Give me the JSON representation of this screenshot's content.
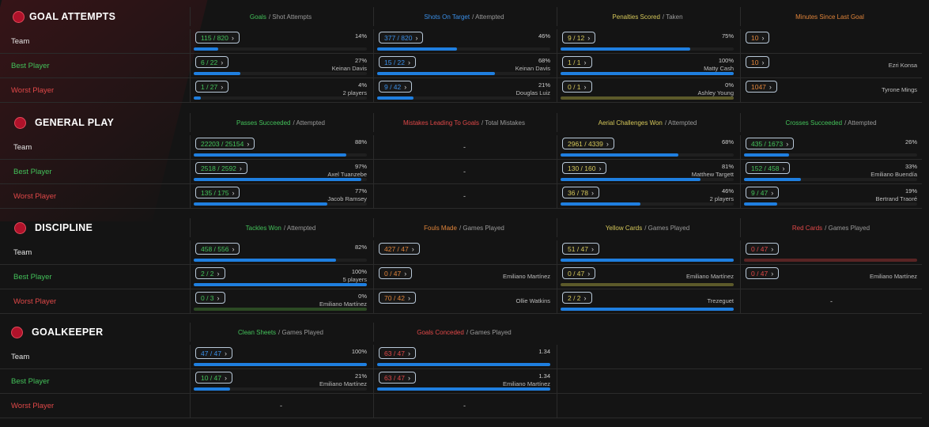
{
  "colors": {
    "green": "#43c25a",
    "blue": "#3a8fe8",
    "yellow": "#d6c85a",
    "orange": "#e0843a",
    "red": "#e04848",
    "bar": "#1f7fe0"
  },
  "row_labels": {
    "team": "Team",
    "best": "Best Player",
    "worst": "Worst Player"
  },
  "sections": [
    {
      "title": "GOAL ATTEMPTS",
      "icon": "goal-icon",
      "columns": [
        {
          "highlight": "Goals",
          "rest": "/ Shot Attempts",
          "color": "#43c25a"
        },
        {
          "highlight": "Shots On Target",
          "rest": "/ Attempted",
          "color": "#3a8fe8"
        },
        {
          "highlight": "Penalties Scored",
          "rest": "/ Taken",
          "color": "#d6c85a"
        },
        {
          "highlight": "Minutes Since Last Goal",
          "rest": "",
          "color": "#e0843a"
        }
      ],
      "rows": [
        {
          "key": "team",
          "cells": [
            {
              "value": "115 / 820",
              "color": "#43c25a",
              "pct": "14%",
              "sub": "",
              "fill": 0.14,
              "track": "dark"
            },
            {
              "value": "377 / 820",
              "color": "#3a8fe8",
              "pct": "46%",
              "sub": "",
              "fill": 0.46,
              "track": "dark"
            },
            {
              "value": "9 / 12",
              "color": "#d6c85a",
              "pct": "75%",
              "sub": "",
              "fill": 0.75,
              "track": "dark"
            },
            {
              "value": "10",
              "color": "#e0843a",
              "pct": "",
              "sub": ""
            }
          ]
        },
        {
          "key": "best",
          "cells": [
            {
              "value": "6 / 22",
              "color": "#43c25a",
              "pct": "27%",
              "sub": "Keinan Davis",
              "fill": 0.27,
              "track": "dark"
            },
            {
              "value": "15 / 22",
              "color": "#3a8fe8",
              "pct": "68%",
              "sub": "Keinan Davis",
              "fill": 0.68,
              "track": "dark"
            },
            {
              "value": "1 / 1",
              "color": "#d6c85a",
              "pct": "100%",
              "sub": "Matty Cash",
              "fill": 1.0,
              "track": "dark"
            },
            {
              "value": "10",
              "color": "#e0843a",
              "pct": "",
              "sub": "Ezri Konsa",
              "midsub": true
            }
          ]
        },
        {
          "key": "worst",
          "cells": [
            {
              "value": "1 / 27",
              "color": "#43c25a",
              "pct": "4%",
              "sub": "2 players",
              "fill": 0.04,
              "track": "dark"
            },
            {
              "value": "9 / 42",
              "color": "#3a8fe8",
              "pct": "21%",
              "sub": "Douglas Luiz",
              "fill": 0.21,
              "track": "dark"
            },
            {
              "value": "0 / 1",
              "color": "#d6c85a",
              "pct": "0%",
              "sub": "Ashley Young",
              "fill": 0,
              "track": "olive"
            },
            {
              "value": "1047",
              "color": "#e0843a",
              "pct": "",
              "sub": "Tyrone Mings",
              "midsub": true
            }
          ]
        }
      ]
    },
    {
      "title": "GENERAL PLAY",
      "icon": "ball-icon",
      "columns": [
        {
          "highlight": "Passes Succeeded",
          "rest": "/ Attempted",
          "color": "#43c25a"
        },
        {
          "highlight": "Mistakes Leading To Goals",
          "rest": "/ Total Mistakes",
          "color": "#e04848"
        },
        {
          "highlight": "Aerial Challenges Won",
          "rest": "/ Attempted",
          "color": "#d6c85a"
        },
        {
          "highlight": "Crosses Succeeded",
          "rest": "/ Attempted",
          "color": "#43c25a"
        }
      ],
      "rows": [
        {
          "key": "team",
          "cells": [
            {
              "value": "22203 / 25154",
              "color": "#43c25a",
              "pct": "88%",
              "sub": "",
              "fill": 0.88,
              "track": "dark"
            },
            {
              "dash": "-"
            },
            {
              "value": "2961 / 4339",
              "color": "#d6c85a",
              "pct": "68%",
              "sub": "",
              "fill": 0.68,
              "track": "dark"
            },
            {
              "value": "435 / 1673",
              "color": "#43c25a",
              "pct": "26%",
              "sub": "",
              "fill": 0.26,
              "track": "dark"
            }
          ]
        },
        {
          "key": "best",
          "cells": [
            {
              "value": "2518 / 2592",
              "color": "#43c25a",
              "pct": "97%",
              "sub": "Axel Tuanzebe",
              "fill": 0.97,
              "track": "dark"
            },
            {
              "dash": "-"
            },
            {
              "value": "130 / 160",
              "color": "#d6c85a",
              "pct": "81%",
              "sub": "Matthew Targett",
              "fill": 0.81,
              "track": "dark"
            },
            {
              "value": "152 / 458",
              "color": "#43c25a",
              "pct": "33%",
              "sub": "Emiliano Buendía",
              "fill": 0.33,
              "track": "dark"
            }
          ]
        },
        {
          "key": "worst",
          "cells": [
            {
              "value": "135 / 175",
              "color": "#43c25a",
              "pct": "77%",
              "sub": "Jacob Ramsey",
              "fill": 0.77,
              "track": "dark"
            },
            {
              "dash": "-"
            },
            {
              "value": "36 / 78",
              "color": "#d6c85a",
              "pct": "46%",
              "sub": "2 players",
              "fill": 0.46,
              "track": "dark"
            },
            {
              "value": "9 / 47",
              "color": "#43c25a",
              "pct": "19%",
              "sub": "Bertrand Traoré",
              "fill": 0.19,
              "track": "dark"
            }
          ]
        }
      ]
    },
    {
      "title": "DISCIPLINE",
      "icon": "cards-icon",
      "columns": [
        {
          "highlight": "Tackles Won",
          "rest": "/ Attempted",
          "color": "#43c25a"
        },
        {
          "highlight": "Fouls Made",
          "rest": "/ Games Played",
          "color": "#e0843a"
        },
        {
          "highlight": "Yellow Cards",
          "rest": "/ Games Played",
          "color": "#d6c85a"
        },
        {
          "highlight": "Red Cards",
          "rest": "/ Games Played",
          "color": "#e04848"
        }
      ],
      "rows": [
        {
          "key": "team",
          "cells": [
            {
              "value": "458 / 556",
              "color": "#43c25a",
              "pct": "82%",
              "sub": "",
              "fill": 0.82,
              "track": "dark"
            },
            {
              "value": "427 / 47",
              "color": "#e0843a",
              "pct": "",
              "sub": ""
            },
            {
              "value": "51 / 47",
              "color": "#d6c85a",
              "pct": "",
              "sub": "",
              "fill": 1.0,
              "track": "dark"
            },
            {
              "value": "0 / 47",
              "color": "#e04848",
              "pct": "",
              "sub": "",
              "fill": 0,
              "track": "red"
            }
          ]
        },
        {
          "key": "best",
          "cells": [
            {
              "value": "2 / 2",
              "color": "#43c25a",
              "pct": "100%",
              "sub": "5 players",
              "fill": 1.0,
              "track": "dark"
            },
            {
              "value": "0 / 47",
              "color": "#e0843a",
              "pct": "",
              "sub": "Emiliano Martínez",
              "midsub": true
            },
            {
              "value": "0 / 47",
              "color": "#d6c85a",
              "pct": "",
              "sub": "Emiliano Martínez",
              "midsub": true,
              "fill": 0,
              "track": "olive"
            },
            {
              "value": "0 / 47",
              "color": "#e04848",
              "pct": "",
              "sub": "Emiliano Martínez",
              "midsub": true
            }
          ]
        },
        {
          "key": "worst",
          "cells": [
            {
              "value": "0 / 3",
              "color": "#43c25a",
              "pct": "0%",
              "sub": "Emiliano Martínez",
              "fill": 0,
              "track": "green"
            },
            {
              "value": "70 / 42",
              "color": "#e0843a",
              "pct": "",
              "sub": "Ollie Watkins",
              "midsub": true
            },
            {
              "value": "2 / 2",
              "color": "#d6c85a",
              "pct": "",
              "sub": "Trezeguet",
              "midsub": true,
              "fill": 1.0,
              "track": "dark"
            },
            {
              "dash": "-"
            }
          ]
        }
      ]
    },
    {
      "title": "GOALKEEPER",
      "icon": "glove-icon",
      "columns": [
        {
          "highlight": "Clean Sheets",
          "rest": "/ Games Played",
          "color": "#43c25a"
        },
        {
          "highlight": "Goals Conceded",
          "rest": "/ Games Played",
          "color": "#e04848"
        }
      ],
      "rows": [
        {
          "key": "team",
          "cells": [
            {
              "value": "47 / 47",
              "color": "#3a8fe8",
              "pct": "100%",
              "sub": "",
              "fill": 1.0,
              "track": "dark"
            },
            {
              "value": "63 / 47",
              "color": "#e04848",
              "pct": "1.34",
              "sub": "",
              "fill": 1.0,
              "track": "dark"
            }
          ]
        },
        {
          "key": "best",
          "cells": [
            {
              "value": "10 / 47",
              "color": "#43c25a",
              "pct": "21%",
              "sub": "Emiliano Martínez",
              "fill": 0.21,
              "track": "dark"
            },
            {
              "value": "63 / 47",
              "color": "#e04848",
              "pct": "1.34",
              "sub": "Emiliano Martínez",
              "fill": 1.0,
              "track": "dark"
            }
          ]
        },
        {
          "key": "worst",
          "cells": [
            {
              "dash": "-"
            },
            {
              "dash": "-"
            }
          ]
        }
      ]
    }
  ]
}
